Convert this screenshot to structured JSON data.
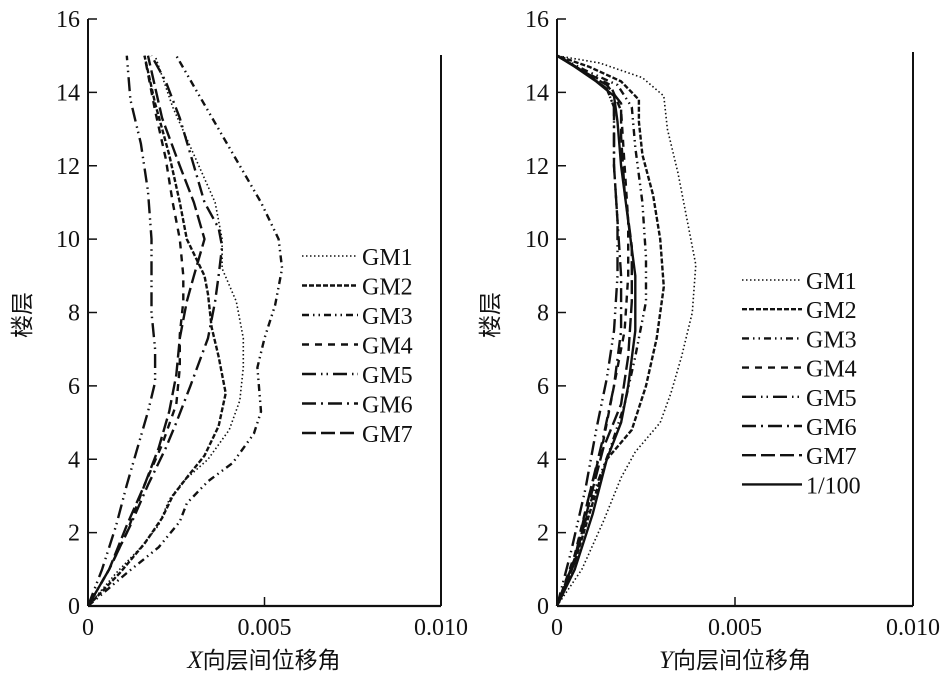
{
  "chart_data": [
    {
      "type": "line",
      "title": "",
      "xlabel": "X向层间位移角",
      "xlabel_italic_prefix": "X",
      "xlabel_suffix": "向层间位移角",
      "ylabel": "楼层",
      "xlim": [
        0,
        0.01
      ],
      "ylim": [
        0,
        16
      ],
      "xticks": [
        "0",
        "0.005",
        "0.010"
      ],
      "yticks": [
        "0",
        "2",
        "4",
        "6",
        "8",
        "10",
        "12",
        "14",
        "16"
      ],
      "grid": false,
      "legend_position": "right-middle",
      "series": [
        {
          "name": "GM1",
          "style": "dotted",
          "points": [
            [
              0,
              0
            ],
            [
              0.0008,
              0.9
            ],
            [
              0.0015,
              1.6
            ],
            [
              0.002,
              2.2
            ],
            [
              0.0023,
              2.9
            ],
            [
              0.0027,
              3.4
            ],
            [
              0.0034,
              4.0
            ],
            [
              0.004,
              4.8
            ],
            [
              0.0043,
              5.6
            ],
            [
              0.0044,
              6.5
            ],
            [
              0.0044,
              7.3
            ],
            [
              0.0042,
              8.3
            ],
            [
              0.0038,
              9.2
            ],
            [
              0.0038,
              10.0
            ],
            [
              0.0036,
              11.0
            ],
            [
              0.003,
              12.3
            ],
            [
              0.0024,
              13.6
            ],
            [
              0.0019,
              15.0
            ]
          ]
        },
        {
          "name": "GM2",
          "style": "dashed-short",
          "points": [
            [
              0,
              0
            ],
            [
              0.0009,
              0.9
            ],
            [
              0.0016,
              1.7
            ],
            [
              0.0021,
              2.4
            ],
            [
              0.0024,
              3.0
            ],
            [
              0.0028,
              3.5
            ],
            [
              0.0033,
              4.1
            ],
            [
              0.0037,
              4.9
            ],
            [
              0.0039,
              5.8
            ],
            [
              0.0037,
              6.8
            ],
            [
              0.0035,
              7.6
            ],
            [
              0.0034,
              8.5
            ],
            [
              0.0033,
              9.0
            ],
            [
              0.0028,
              10.0
            ],
            [
              0.0026,
              11.0
            ],
            [
              0.0023,
              12.3
            ],
            [
              0.0019,
              13.7
            ],
            [
              0.0016,
              15.0
            ]
          ]
        },
        {
          "name": "GM3",
          "style": "dash-dot-dot",
          "points": [
            [
              0,
              0
            ],
            [
              0.0011,
              0.9
            ],
            [
              0.002,
              1.6
            ],
            [
              0.0026,
              2.3
            ],
            [
              0.0028,
              2.8
            ],
            [
              0.0034,
              3.4
            ],
            [
              0.0041,
              3.9
            ],
            [
              0.0047,
              4.7
            ],
            [
              0.0049,
              5.3
            ],
            [
              0.0048,
              6.5
            ],
            [
              0.005,
              7.3
            ],
            [
              0.0053,
              8.2
            ],
            [
              0.0055,
              9.2
            ],
            [
              0.0054,
              10.0
            ],
            [
              0.0049,
              11.0
            ],
            [
              0.004,
              12.5
            ],
            [
              0.0031,
              14.0
            ],
            [
              0.0025,
              15.0
            ]
          ]
        },
        {
          "name": "GM4",
          "style": "dashed",
          "points": [
            [
              0,
              0
            ],
            [
              0.0006,
              1.0
            ],
            [
              0.0011,
              2.0
            ],
            [
              0.0016,
              3.3
            ],
            [
              0.0021,
              4.4
            ],
            [
              0.0025,
              5.5
            ],
            [
              0.0026,
              6.5
            ],
            [
              0.0026,
              7.4
            ],
            [
              0.0027,
              8.3
            ],
            [
              0.0027,
              9.0
            ],
            [
              0.0026,
              10.0
            ],
            [
              0.0024,
              11.0
            ],
            [
              0.0022,
              12.2
            ],
            [
              0.0019,
              13.5
            ],
            [
              0.0016,
              15.0
            ]
          ]
        },
        {
          "name": "GM5",
          "style": "long-dash-dot-dot",
          "points": [
            [
              0,
              0
            ],
            [
              0.0004,
              1.0
            ],
            [
              0.0008,
              2.2
            ],
            [
              0.0011,
              3.3
            ],
            [
              0.0014,
              4.3
            ],
            [
              0.0017,
              5.3
            ],
            [
              0.0019,
              6.1
            ],
            [
              0.0019,
              7.0
            ],
            [
              0.0018,
              8.0
            ],
            [
              0.0018,
              9.0
            ],
            [
              0.0018,
              10.0
            ],
            [
              0.0017,
              11.3
            ],
            [
              0.0015,
              12.6
            ],
            [
              0.0012,
              13.8
            ],
            [
              0.0011,
              15.0
            ]
          ]
        },
        {
          "name": "GM6",
          "style": "long-dash-dot",
          "points": [
            [
              0,
              0
            ],
            [
              0.0006,
              1.0
            ],
            [
              0.0012,
              2.2
            ],
            [
              0.0017,
              3.3
            ],
            [
              0.0022,
              4.3
            ],
            [
              0.0025,
              5.0
            ],
            [
              0.0029,
              6.0
            ],
            [
              0.0034,
              7.3
            ],
            [
              0.0036,
              8.3
            ],
            [
              0.0037,
              9.0
            ],
            [
              0.0038,
              9.8
            ],
            [
              0.0037,
              10.3
            ],
            [
              0.0033,
              11.0
            ],
            [
              0.003,
              12.0
            ],
            [
              0.0026,
              13.3
            ],
            [
              0.0022,
              14.3
            ],
            [
              0.0018,
              15.0
            ]
          ]
        },
        {
          "name": "GM7",
          "style": "long-dash",
          "points": [
            [
              0,
              0
            ],
            [
              0.0006,
              1.0
            ],
            [
              0.0011,
              2.2
            ],
            [
              0.0016,
              3.3
            ],
            [
              0.002,
              4.3
            ],
            [
              0.0023,
              5.3
            ],
            [
              0.0025,
              6.3
            ],
            [
              0.0026,
              7.3
            ],
            [
              0.0028,
              8.3
            ],
            [
              0.003,
              9.0
            ],
            [
              0.0033,
              10.0
            ],
            [
              0.003,
              11.0
            ],
            [
              0.0026,
              12.0
            ],
            [
              0.0021,
              13.3
            ],
            [
              0.0017,
              15.0
            ]
          ]
        }
      ]
    },
    {
      "type": "line",
      "title": "",
      "xlabel": "Y向层间位移角",
      "xlabel_italic_prefix": "Y",
      "xlabel_suffix": "向层间位移角",
      "ylabel": "楼层",
      "xlim": [
        0,
        0.01
      ],
      "ylim": [
        0,
        16
      ],
      "xticks": [
        "0",
        "0.005",
        "0.010"
      ],
      "yticks": [
        "0",
        "2",
        "4",
        "6",
        "8",
        "10",
        "12",
        "14",
        "16"
      ],
      "grid": false,
      "legend_position": "right-middle",
      "series": [
        {
          "name": "GM1",
          "style": "dotted",
          "points": [
            [
              0,
              0
            ],
            [
              0.0007,
              1.0
            ],
            [
              0.0013,
              2.3
            ],
            [
              0.0018,
              3.5
            ],
            [
              0.0022,
              4.2
            ],
            [
              0.0029,
              5.0
            ],
            [
              0.0032,
              5.8
            ],
            [
              0.0035,
              6.8
            ],
            [
              0.0038,
              8.0
            ],
            [
              0.0039,
              9.3
            ],
            [
              0.0037,
              10.3
            ],
            [
              0.0034,
              11.8
            ],
            [
              0.0031,
              13.0
            ],
            [
              0.003,
              13.9
            ],
            [
              0.0024,
              14.4
            ],
            [
              0.0012,
              14.8
            ],
            [
              0.0,
              15.0
            ]
          ]
        },
        {
          "name": "GM2",
          "style": "dashed-short",
          "points": [
            [
              0,
              0
            ],
            [
              0.0005,
              1.2
            ],
            [
              0.001,
              2.8
            ],
            [
              0.0014,
              4.0
            ],
            [
              0.0021,
              4.8
            ],
            [
              0.0025,
              6.0
            ],
            [
              0.0028,
              7.3
            ],
            [
              0.003,
              8.7
            ],
            [
              0.0029,
              10.0
            ],
            [
              0.0027,
              11.2
            ],
            [
              0.0024,
              12.3
            ],
            [
              0.0023,
              13.2
            ],
            [
              0.0023,
              13.8
            ],
            [
              0.0018,
              14.3
            ],
            [
              0.0009,
              14.7
            ],
            [
              0.0,
              15.0
            ]
          ]
        },
        {
          "name": "GM3",
          "style": "dash-dot-dot",
          "points": [
            [
              0,
              0
            ],
            [
              0.0005,
              1.3
            ],
            [
              0.001,
              3.0
            ],
            [
              0.0015,
              4.3
            ],
            [
              0.0019,
              5.5
            ],
            [
              0.0022,
              6.8
            ],
            [
              0.0025,
              8.3
            ],
            [
              0.0025,
              9.5
            ],
            [
              0.0024,
              11.0
            ],
            [
              0.0022,
              12.5
            ],
            [
              0.0021,
              13.6
            ],
            [
              0.0017,
              14.2
            ],
            [
              0.0008,
              14.6
            ],
            [
              0.0,
              15.0
            ]
          ]
        },
        {
          "name": "GM4",
          "style": "dashed",
          "points": [
            [
              0,
              0
            ],
            [
              0.0005,
              1.4
            ],
            [
              0.0009,
              3.0
            ],
            [
              0.0013,
              4.5
            ],
            [
              0.0016,
              6.0
            ],
            [
              0.0019,
              7.5
            ],
            [
              0.002,
              9.0
            ],
            [
              0.002,
              10.5
            ],
            [
              0.0019,
              12.0
            ],
            [
              0.0018,
              13.5
            ],
            [
              0.0015,
              14.2
            ],
            [
              0.0007,
              14.6
            ],
            [
              0.0,
              15.0
            ]
          ]
        },
        {
          "name": "GM5",
          "style": "long-dash-dot-dot",
          "points": [
            [
              0,
              0
            ],
            [
              0.0004,
              1.5
            ],
            [
              0.0008,
              3.2
            ],
            [
              0.0011,
              4.8
            ],
            [
              0.0014,
              6.2
            ],
            [
              0.0016,
              7.5
            ],
            [
              0.0017,
              9.0
            ],
            [
              0.0017,
              10.5
            ],
            [
              0.0016,
              12.0
            ],
            [
              0.0016,
              13.6
            ],
            [
              0.0014,
              14.1
            ],
            [
              0.0007,
              14.6
            ],
            [
              0.0,
              15.0
            ]
          ]
        },
        {
          "name": "GM6",
          "style": "long-dash-dot",
          "points": [
            [
              0,
              0
            ],
            [
              0.0005,
              1.3
            ],
            [
              0.0009,
              3.0
            ],
            [
              0.0013,
              4.6
            ],
            [
              0.0016,
              6.0
            ],
            [
              0.0018,
              7.5
            ],
            [
              0.0018,
              9.0
            ],
            [
              0.0017,
              10.5
            ],
            [
              0.0016,
              12.0
            ],
            [
              0.0016,
              13.6
            ],
            [
              0.0014,
              14.1
            ],
            [
              0.0007,
              14.6
            ],
            [
              0.0,
              15.0
            ]
          ]
        },
        {
          "name": "GM7",
          "style": "long-dash",
          "points": [
            [
              0,
              0
            ],
            [
              0.0005,
              1.2
            ],
            [
              0.0009,
              2.8
            ],
            [
              0.0013,
              4.3
            ],
            [
              0.0018,
              5.5
            ],
            [
              0.002,
              6.8
            ],
            [
              0.0021,
              8.3
            ],
            [
              0.0021,
              9.8
            ],
            [
              0.0019,
              11.3
            ],
            [
              0.0018,
              12.8
            ],
            [
              0.0018,
              13.7
            ],
            [
              0.0014,
              14.2
            ],
            [
              0.0007,
              14.6
            ],
            [
              0.0,
              15.0
            ]
          ]
        },
        {
          "name": "1/100",
          "style": "solid",
          "points": [
            [
              0,
              0
            ],
            [
              0.0005,
              1.0
            ],
            [
              0.001,
              2.5
            ],
            [
              0.0014,
              4.0
            ],
            [
              0.0018,
              5.0
            ],
            [
              0.002,
              6.0
            ],
            [
              0.0022,
              7.5
            ],
            [
              0.0022,
              9.0
            ],
            [
              0.002,
              10.5
            ],
            [
              0.0018,
              12.0
            ],
            [
              0.0017,
              13.2
            ],
            [
              0.0016,
              13.9
            ],
            [
              0.0011,
              14.3
            ],
            [
              0.0005,
              14.7
            ],
            [
              0.0,
              15.0
            ]
          ]
        }
      ]
    }
  ],
  "styles": {
    "dotted": "1.5 2.5",
    "dashed-short": "5 2",
    "dash-dot-dot": "7 4 1.5 4 1.5 4",
    "dashed": "7 6",
    "long-dash-dot-dot": "14 5 1.5 4 1.5 5",
    "long-dash-dot": "14 5 2 5",
    "long-dash": "14 5",
    "solid": ""
  },
  "line_color": "#111111"
}
